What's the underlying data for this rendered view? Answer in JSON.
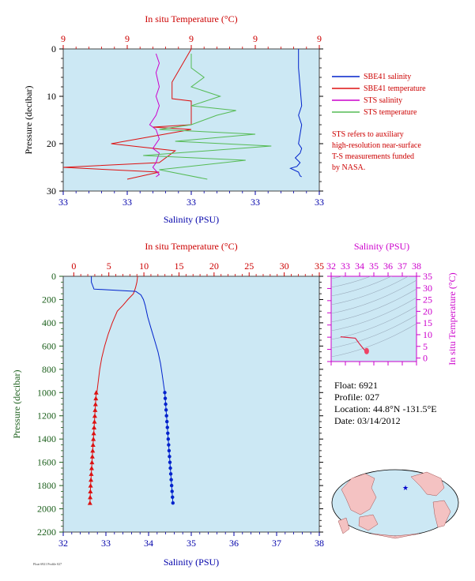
{
  "colors": {
    "plot_bg": "#cce8f4",
    "temp_axis": "#cc0000",
    "sal_axis": "#0000aa",
    "pressure_axis": "#1a5e1a",
    "ts_axis": "#cc00cc",
    "sbe_salinity": "#0022cc",
    "sbe_temperature": "#dd1111",
    "sts_salinity": "#cc00cc",
    "sts_temperature": "#55bb55"
  },
  "legend": {
    "sbe_salinity": "SBE41 salinity",
    "sbe_temperature": "SBE41 temperature",
    "sts_salinity": "STS salinity",
    "sts_temperature": "STS temperature"
  },
  "note": [
    "STS refers to auxiliary",
    "high-resolution near-surface",
    "T-S measurements funded",
    "by NASA."
  ],
  "float_info": {
    "float": "Float: 6921",
    "profile": "Profile: 027",
    "location": "Location: 44.8°N -131.5°E",
    "date": "Date: 03/14/2012"
  },
  "footer_text": "Float 6921 Profile 027",
  "chart_data": [
    {
      "type": "line",
      "title": "",
      "top_axis_label": "In situ Temperature (°C)",
      "bottom_axis_label": "Salinity (PSU)",
      "ylabel": "Pressure (decibar)",
      "top_tick_labels": [
        "9",
        "9",
        "9",
        "9",
        "9"
      ],
      "bottom_tick_labels": [
        "33",
        "33",
        "33",
        "33",
        "33"
      ],
      "y_tick_labels": [
        "0",
        "10",
        "20",
        "30"
      ],
      "ylim": [
        30,
        0
      ],
      "temperature_range": [
        8.96,
        9.04
      ],
      "salinity_range": [
        32.96,
        33.04
      ],
      "series": [
        {
          "name": "SBE41 salinity",
          "axis": "salinity",
          "x": [
            33.0335,
            33.0335,
            33.034,
            33.0345,
            33.0335,
            33.0345,
            33.034,
            33.0335,
            33.0345,
            33.034,
            33.0325,
            33.034,
            33.033,
            33.031,
            33.0335,
            33.034,
            33.0345
          ],
          "y": [
            0,
            4,
            8,
            12,
            14,
            16,
            18,
            20,
            21,
            22,
            23,
            24,
            24.8,
            25.2,
            26,
            26.8,
            27
          ]
        },
        {
          "name": "SBE41 temperature",
          "axis": "temperature",
          "x": [
            9.0,
            8.994,
            8.994,
            9.0,
            9.0,
            8.988,
            9.0,
            8.975,
            8.995,
            8.99,
            8.96,
            8.99,
            8.98
          ],
          "y": [
            0,
            7,
            10.5,
            11,
            16,
            16.5,
            17,
            20,
            21.5,
            24,
            25,
            26,
            27.5
          ]
        },
        {
          "name": "STS salinity",
          "axis": "salinity",
          "x": [
            32.989,
            32.99,
            32.989,
            32.99,
            32.989,
            32.99,
            32.989,
            32.987,
            32.989,
            32.99,
            32.988,
            32.99,
            32.989,
            32.988,
            32.99,
            32.989
          ],
          "y": [
            1,
            3,
            5,
            8,
            10,
            12,
            14,
            16,
            17,
            19,
            21,
            22,
            24,
            25,
            26.5,
            27
          ]
        },
        {
          "name": "STS temperature",
          "axis": "temperature",
          "x": [
            9.0,
            9.0,
            9.004,
            9.0,
            9.009,
            9.0,
            9.014,
            9.008,
            9.0,
            8.99,
            9.02,
            8.995,
            9.025,
            8.985,
            9.017,
            8.99,
            9.005
          ],
          "y": [
            1,
            4,
            6,
            8,
            10,
            12,
            13,
            14,
            16,
            17,
            18,
            19.5,
            20.5,
            22.5,
            23.5,
            25.5,
            27.5
          ]
        }
      ]
    },
    {
      "type": "line",
      "title": "",
      "top_axis_label": "In situ Temperature (°C)",
      "bottom_axis_label": "Salinity (PSU)",
      "ylabel": "Pressure (decibar)",
      "top_tick_labels": [
        "0",
        "5",
        "10",
        "15",
        "20",
        "25",
        "30",
        "35"
      ],
      "bottom_tick_labels": [
        "32",
        "33",
        "34",
        "35",
        "36",
        "37",
        "38"
      ],
      "y_tick_labels": [
        "0",
        "200",
        "400",
        "600",
        "800",
        "1000",
        "1200",
        "1400",
        "1600",
        "1800",
        "2000",
        "2200"
      ],
      "temperature_range": [
        -1.5,
        35
      ],
      "salinity_range": [
        32,
        38
      ],
      "ylim": [
        2200,
        0
      ],
      "series": [
        {
          "name": "Temperature",
          "axis": "temperature",
          "x": [
            9.1,
            9.0,
            8.8,
            8.5,
            7.7,
            7.0,
            6.2,
            5.5,
            4.9,
            4.4,
            4.0,
            3.7,
            3.5,
            3.3,
            3.2
          ],
          "y": [
            0,
            50,
            100,
            150,
            200,
            250,
            300,
            400,
            500,
            600,
            700,
            800,
            900,
            1000,
            1000
          ]
        },
        {
          "name": "Salinity",
          "axis": "salinity",
          "x": [
            32.66,
            32.66,
            32.72,
            33.7,
            33.82,
            33.88,
            33.92,
            33.98,
            34.06,
            34.14,
            34.22,
            34.28,
            34.32,
            34.36,
            34.38
          ],
          "y": [
            0,
            50,
            110,
            130,
            160,
            200,
            250,
            350,
            450,
            550,
            650,
            750,
            850,
            950,
            1000
          ]
        },
        {
          "name": "Temperature (points)",
          "axis": "temperature",
          "x": [
            3.2,
            3.15,
            3.1,
            3.05,
            3.0,
            2.95,
            2.9,
            2.85,
            2.8,
            2.75,
            2.7,
            2.65,
            2.6,
            2.55,
            2.5,
            2.45,
            2.4,
            2.37,
            2.34,
            2.31
          ],
          "y": [
            1000,
            1050,
            1100,
            1150,
            1200,
            1250,
            1300,
            1350,
            1400,
            1450,
            1500,
            1550,
            1600,
            1650,
            1700,
            1750,
            1800,
            1850,
            1900,
            1950
          ]
        },
        {
          "name": "Salinity (points)",
          "axis": "salinity",
          "x": [
            34.38,
            34.39,
            34.4,
            34.41,
            34.42,
            34.43,
            34.44,
            34.45,
            34.46,
            34.47,
            34.48,
            34.49,
            34.5,
            34.51,
            34.52,
            34.53,
            34.54,
            34.55,
            34.56,
            34.57
          ],
          "y": [
            1000,
            1050,
            1100,
            1150,
            1200,
            1250,
            1300,
            1350,
            1400,
            1450,
            1500,
            1550,
            1600,
            1650,
            1700,
            1750,
            1800,
            1850,
            1900,
            1950
          ]
        }
      ]
    },
    {
      "type": "line",
      "title": "",
      "top_axis_label": "Salinity (PSU)",
      "right_axis_label": "In situ Temperature (°C)",
      "top_tick_labels": [
        "32",
        "33",
        "34",
        "35",
        "36",
        "37",
        "38"
      ],
      "right_tick_labels": [
        "0",
        "5",
        "10",
        "15",
        "20",
        "25",
        "30",
        "35"
      ],
      "xlim": [
        32,
        38
      ],
      "ylim": [
        -1.5,
        35
      ],
      "series": [
        {
          "name": "T-S profile",
          "x": [
            32.66,
            33.7,
            34.0,
            34.2,
            34.38,
            34.55
          ],
          "y": [
            9.1,
            8.5,
            6.0,
            4.5,
            3.2,
            2.3
          ]
        }
      ]
    }
  ]
}
